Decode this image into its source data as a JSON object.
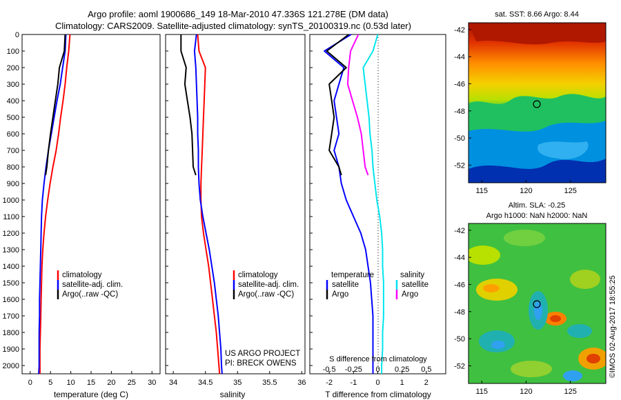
{
  "header": {
    "line1": "Argo profile: aoml 1900686_149 18-Mar-2010 47.336S 121.278E (DM data)",
    "line2": "Climatology: CARS2009. Satellite-adjusted climatology: synTS_20100319.nc (0.53d later)"
  },
  "depth_ticks": [
    "0",
    "100",
    "200",
    "300",
    "400",
    "500",
    "600",
    "700",
    "800",
    "900",
    "1000",
    "1100",
    "1200",
    "1300",
    "1400",
    "1500",
    "1600",
    "1700",
    "1800",
    "1900",
    "2000"
  ],
  "colors": {
    "climatology": "#ff0000",
    "satellite": "#0000ff",
    "argo": "#000000",
    "sat_sal": "#00e5ee",
    "argo_sal": "#ff00ff"
  },
  "panels": {
    "temperature": {
      "xlabel": "temperature (deg C)",
      "xticks": [
        "0",
        "5",
        "10",
        "15",
        "20",
        "25",
        "30"
      ],
      "legend": [
        "climatology",
        "satellite-adj. clim.",
        "Argo(..raw -QC)"
      ]
    },
    "salinity": {
      "xlabel": "salinity",
      "xticks": [
        "34",
        "34.5",
        "35",
        "35.5",
        "36"
      ],
      "legend": [
        "climatology",
        "satellite-adj. clim.",
        "Argo(..raw -QC)"
      ],
      "credit1": "US ARGO PROJECT",
      "credit2": "PI: BRECK OWENS"
    },
    "difference": {
      "xlabel": "T difference from climatology",
      "xlabel_top": "S difference from climatology",
      "xticks": [
        "-2",
        "-1",
        "0",
        "1",
        "2"
      ],
      "sticks": [
        "-0.5",
        "-0.25",
        "0",
        "0.25",
        "0.5"
      ],
      "legend_t_head": "temperature",
      "legend_s_head": "salinity",
      "legend_t": [
        "satellite",
        "Argo"
      ],
      "legend_s": [
        "satellite",
        "Argo"
      ]
    }
  },
  "maps": {
    "sst": {
      "title": "sat. SST: 8.66 Argo: 8.44",
      "yticks": [
        "-42",
        "-44",
        "-46",
        "-48",
        "-50",
        "-52"
      ],
      "xticks": [
        "115",
        "120",
        "125"
      ]
    },
    "sla": {
      "title1": "Altim. SLA: -0.25",
      "title2": "Argo h1000: NaN h2000: NaN",
      "yticks": [
        "-42",
        "-44",
        "-46",
        "-48",
        "-50",
        "-52"
      ],
      "xticks": [
        "115",
        "120",
        "125"
      ]
    },
    "stamp": "©IMOS 02-Aug-2017 18:55:25"
  },
  "chart_data": [
    {
      "type": "line",
      "title": "",
      "xlabel": "temperature (deg C)",
      "ylabel": "",
      "xlim": [
        -2,
        32
      ],
      "ylim": [
        2050,
        0
      ],
      "series": [
        {
          "name": "climatology",
          "color": "#ff0000",
          "x": [
            9.8,
            9.5,
            9.0,
            8.6,
            8.1,
            7.5,
            7.0,
            6.4,
            5.6,
            4.9,
            4.3,
            3.8,
            3.4,
            3.1,
            2.9,
            2.8,
            2.7,
            2.6,
            2.5,
            2.4,
            2.4,
            2.4
          ],
          "y": [
            0,
            100,
            200,
            300,
            400,
            500,
            600,
            700,
            800,
            900,
            1000,
            1100,
            1200,
            1300,
            1400,
            1500,
            1600,
            1700,
            1800,
            1900,
            2000,
            2050
          ]
        },
        {
          "name": "satellite-adj. clim.",
          "color": "#0000ff",
          "x": [
            8.8,
            8.6,
            8.0,
            7.4,
            6.6,
            5.9,
            5.2,
            4.5,
            3.9,
            3.4,
            3.0,
            2.8,
            2.7,
            2.6,
            2.5,
            2.4,
            2.3,
            2.3,
            2.2,
            2.2,
            2.2,
            2.1
          ],
          "y": [
            0,
            100,
            200,
            300,
            400,
            500,
            600,
            700,
            800,
            900,
            1000,
            1100,
            1200,
            1300,
            1400,
            1500,
            1600,
            1700,
            1800,
            1900,
            2000,
            2050
          ]
        },
        {
          "name": "Argo(..raw -QC)",
          "color": "#000000",
          "x": [
            8.6,
            8.4,
            7.2,
            6.8,
            6.2,
            5.6,
            5.0,
            4.5,
            4.1,
            3.8
          ],
          "y": [
            0,
            100,
            200,
            300,
            400,
            500,
            600,
            700,
            800,
            850
          ]
        }
      ]
    },
    {
      "type": "line",
      "title": "",
      "xlabel": "salinity",
      "ylabel": "",
      "xlim": [
        33.88,
        36.05
      ],
      "ylim": [
        2050,
        0
      ],
      "series": [
        {
          "name": "climatology",
          "color": "#ff0000",
          "x": [
            34.38,
            34.4,
            34.5,
            34.49,
            34.48,
            34.47,
            34.46,
            34.45,
            34.44,
            34.43,
            34.43,
            34.44,
            34.47,
            34.51,
            34.55,
            34.58,
            34.61,
            34.64,
            34.67,
            34.69,
            34.71,
            34.72
          ],
          "y": [
            0,
            100,
            200,
            300,
            400,
            500,
            600,
            700,
            800,
            900,
            1000,
            1100,
            1200,
            1300,
            1400,
            1500,
            1600,
            1700,
            1800,
            1900,
            2000,
            2050
          ]
        },
        {
          "name": "satellite-adj. clim.",
          "color": "#0000ff",
          "x": [
            34.36,
            34.33,
            34.35,
            34.36,
            34.37,
            34.38,
            34.38,
            34.39,
            34.39,
            34.4,
            34.42,
            34.46,
            34.51,
            34.56,
            34.6,
            34.64,
            34.67,
            34.7,
            34.72,
            34.74,
            34.75,
            34.76
          ],
          "y": [
            0,
            100,
            200,
            300,
            400,
            500,
            600,
            700,
            800,
            900,
            1000,
            1100,
            1200,
            1300,
            1400,
            1500,
            1600,
            1700,
            1800,
            1900,
            2000,
            2050
          ]
        },
        {
          "name": "Argo(..raw -QC)",
          "color": "#000000",
          "x": [
            34.12,
            34.12,
            34.2,
            34.18,
            34.22,
            34.26,
            34.29,
            34.3,
            34.31,
            34.35
          ],
          "y": [
            0,
            100,
            200,
            300,
            400,
            500,
            600,
            700,
            800,
            850
          ]
        }
      ]
    },
    {
      "type": "line",
      "title": "",
      "xlabel": "T difference from climatology",
      "ylabel": "",
      "xlim": [
        -2.8,
        2.8
      ],
      "ylim": [
        2050,
        0
      ],
      "series": [
        {
          "name": "satellite",
          "color": "#0000ff",
          "x": [
            -1.1,
            -2.2,
            -1.4,
            -1.6,
            -1.8,
            -1.7,
            -1.6,
            -1.8,
            -1.6,
            -1.5,
            -1.3,
            -1.0,
            -0.7,
            -0.5,
            -0.4,
            -0.3,
            -0.25,
            -0.2,
            -0.2,
            -0.2,
            -0.2,
            -0.2
          ],
          "y": [
            0,
            100,
            200,
            300,
            400,
            500,
            600,
            700,
            800,
            900,
            1000,
            1100,
            1200,
            1300,
            1400,
            1500,
            1600,
            1700,
            1800,
            1900,
            2000,
            2050
          ]
        },
        {
          "name": "Argo",
          "color": "#000000",
          "x": [
            -1.2,
            -2.1,
            -1.3,
            -2.0,
            -1.9,
            -1.8,
            -1.9,
            -2.0,
            -1.6,
            -1.5
          ],
          "y": [
            0,
            100,
            200,
            300,
            400,
            500,
            600,
            700,
            800,
            850
          ]
        }
      ]
    },
    {
      "type": "line",
      "title": "",
      "xlabel": "S difference from climatology",
      "ylabel": "",
      "xlim": [
        -0.7,
        0.7
      ],
      "ylim": [
        2050,
        0
      ],
      "series": [
        {
          "name": "satellite",
          "color": "#00e5ee",
          "x": [
            0.0,
            -0.05,
            -0.15,
            -0.13,
            -0.11,
            -0.09,
            -0.08,
            -0.06,
            -0.05,
            -0.03,
            -0.01,
            0.02,
            0.04,
            0.05,
            0.05,
            0.06,
            0.06,
            0.06,
            0.05,
            0.05,
            0.04,
            0.04
          ],
          "y": [
            0,
            100,
            200,
            300,
            400,
            500,
            600,
            700,
            800,
            900,
            1000,
            1100,
            1200,
            1300,
            1400,
            1500,
            1600,
            1700,
            1800,
            1900,
            2000,
            2050
          ]
        },
        {
          "name": "Argo",
          "color": "#ff00ff",
          "x": [
            -0.2,
            -0.28,
            -0.3,
            -0.31,
            -0.26,
            -0.21,
            -0.17,
            -0.15,
            -0.13,
            -0.1
          ],
          "y": [
            0,
            100,
            200,
            300,
            400,
            500,
            600,
            700,
            800,
            850
          ]
        }
      ]
    }
  ]
}
